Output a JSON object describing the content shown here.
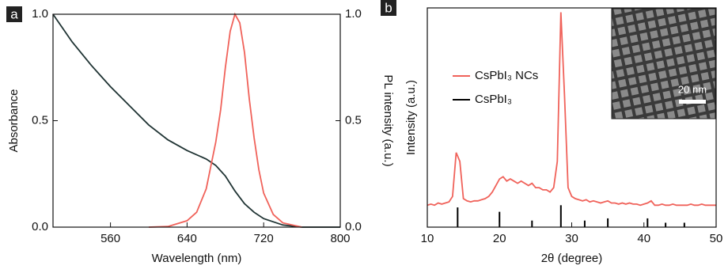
{
  "chart_data": [
    {
      "type": "line",
      "panel_label": "a",
      "x_label": "Wavelength (nm)",
      "y_label": "Absorbance",
      "y2_label": "PL intensity (a.u.)",
      "xlim": [
        500,
        800
      ],
      "xticks": [
        560,
        640,
        720,
        800
      ],
      "ylim": [
        0,
        1
      ],
      "yticks": [
        {
          "value": 0,
          "label": "0.0"
        },
        0.5,
        {
          "value": 1,
          "label": "1.0"
        }
      ],
      "y2lim": [
        0,
        1
      ],
      "y2ticks": [
        {
          "value": 0,
          "label": "0.0"
        },
        0.5,
        {
          "value": 1,
          "label": "1.0"
        }
      ],
      "series": [
        {
          "color": "#1f3333",
          "x": [
            500,
            520,
            540,
            560,
            580,
            600,
            620,
            640,
            660,
            670,
            680,
            690,
            700,
            710,
            720,
            740,
            760,
            780,
            800
          ],
          "values": [
            1.0,
            0.87,
            0.76,
            0.66,
            0.57,
            0.48,
            0.41,
            0.36,
            0.32,
            0.29,
            0.24,
            0.17,
            0.11,
            0.07,
            0.04,
            0.01,
            0.0,
            0.0,
            0.0
          ]
        },
        {
          "color": "#f0625a",
          "axis": "y2",
          "x": [
            600,
            620,
            640,
            650,
            660,
            670,
            675,
            680,
            685,
            690,
            695,
            700,
            705,
            710,
            715,
            720,
            730,
            740,
            760
          ],
          "values": [
            0.0,
            0.003,
            0.03,
            0.07,
            0.18,
            0.4,
            0.55,
            0.75,
            0.92,
            1.0,
            0.96,
            0.82,
            0.6,
            0.42,
            0.27,
            0.16,
            0.06,
            0.02,
            0.0
          ]
        }
      ]
    },
    {
      "type": "line",
      "panel_label": "b",
      "x_label": "2θ (degree)",
      "y_label": "Intensity (a.u.)",
      "inset_scale_label": "20 nm",
      "xlim": [
        10,
        50
      ],
      "xticks": [
        10,
        20,
        30,
        40,
        50
      ],
      "ylim": [
        0,
        100
      ],
      "series": [
        {
          "name": "CsPbI₃ NCs",
          "color": "#f0625a",
          "x": [
            10,
            10.5,
            11,
            11.5,
            12,
            12.5,
            13,
            13.5,
            14,
            14.5,
            15,
            15.5,
            16,
            16.5,
            17,
            17.5,
            18,
            18.5,
            19,
            19.5,
            20,
            20.5,
            21,
            21.5,
            22,
            22.5,
            23,
            23.5,
            24,
            24.5,
            25,
            25.5,
            26,
            26.5,
            27,
            27.5,
            28,
            28.5,
            29,
            29.5,
            30,
            30.5,
            31,
            31.5,
            32,
            32.5,
            33,
            33.5,
            34,
            34.5,
            35,
            35.5,
            36,
            36.5,
            37,
            37.5,
            38,
            38.5,
            39,
            39.5,
            40,
            40.5,
            41,
            41.5,
            42,
            42.5,
            43,
            43.5,
            44,
            44.5,
            45,
            45.5,
            46,
            46.5,
            47,
            47.5,
            48,
            48.5,
            49,
            49.5,
            50
          ],
          "values": [
            10,
            10.5,
            10,
            11,
            10.5,
            11,
            11.5,
            14,
            34,
            30,
            13,
            12,
            11.5,
            12,
            12,
            12.5,
            13,
            14,
            16,
            19,
            22,
            23,
            21,
            22,
            21,
            20,
            21,
            20,
            19,
            20,
            18,
            18,
            17,
            17,
            16,
            18,
            30,
            98,
            60,
            18,
            14,
            13,
            12.5,
            12,
            12.5,
            11.5,
            12,
            11.5,
            11,
            11.5,
            12,
            11,
            11,
            10.5,
            11,
            10.5,
            11,
            10.5,
            10.5,
            10,
            10.5,
            11,
            12,
            10,
            10,
            10.5,
            10,
            10,
            10.5,
            10,
            10,
            10,
            10,
            10.5,
            10,
            10,
            10.5,
            10,
            10,
            10,
            10
          ]
        },
        {
          "name": "CsPbI₃",
          "color": "#000000",
          "style": "stick",
          "x": [
            14.2,
            20,
            24.5,
            28.5,
            31.8,
            35,
            40.5,
            43,
            45.6
          ],
          "values": [
            9,
            7,
            3,
            10,
            3,
            4,
            4,
            2,
            2
          ]
        }
      ]
    }
  ]
}
